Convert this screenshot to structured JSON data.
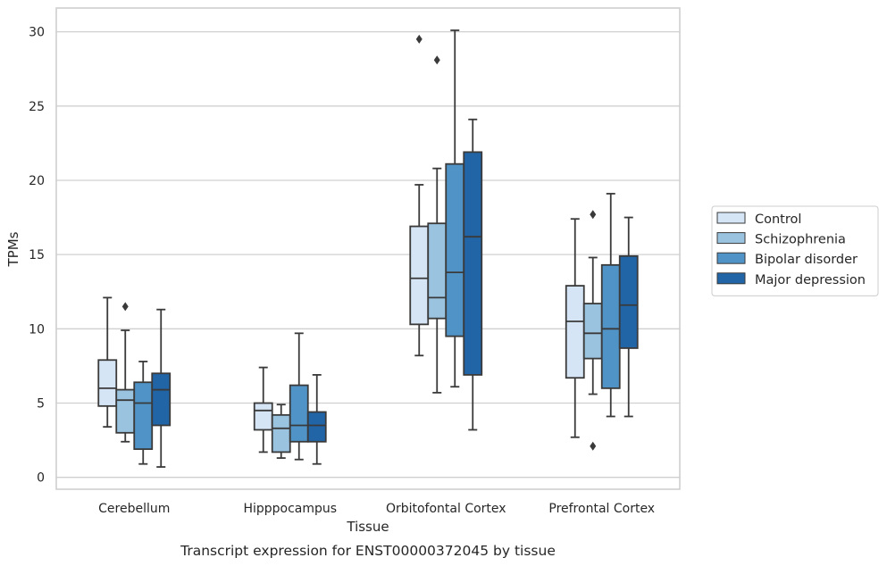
{
  "chart_data": {
    "type": "boxplot",
    "title": "",
    "caption": "Transcript expression for ENST00000372045 by tissue",
    "xlabel": "Tissue",
    "ylabel": "TPMs",
    "ylim": [
      -0.8,
      31.6
    ],
    "yticks": [
      "0",
      "5",
      "10",
      "15",
      "20",
      "25",
      "30"
    ],
    "grid": "horizontal",
    "legend_position": "right",
    "categories": [
      "Cerebellum",
      "Hipppocampus",
      "Orbitofontal Cortex",
      "Prefrontal Cortex"
    ],
    "series": [
      {
        "name": "Control",
        "color": "#d6e5f5",
        "boxes": [
          {
            "whislo": 3.4,
            "q1": 4.8,
            "med": 6.0,
            "q3": 7.9,
            "whishi": 12.1,
            "fliers": []
          },
          {
            "whislo": 1.7,
            "q1": 3.2,
            "med": 4.5,
            "q3": 5.0,
            "whishi": 7.4,
            "fliers": []
          },
          {
            "whislo": 8.2,
            "q1": 10.3,
            "med": 13.4,
            "q3": 16.9,
            "whishi": 19.7,
            "fliers": [
              29.5
            ]
          },
          {
            "whislo": 2.7,
            "q1": 6.7,
            "med": 10.5,
            "q3": 12.9,
            "whishi": 17.4,
            "fliers": []
          }
        ]
      },
      {
        "name": "Schizophrenia",
        "color": "#9ac3e0",
        "boxes": [
          {
            "whislo": 2.4,
            "q1": 3.0,
            "med": 5.2,
            "q3": 5.9,
            "whishi": 9.9,
            "fliers": [
              11.5
            ]
          },
          {
            "whislo": 1.3,
            "q1": 1.7,
            "med": 3.3,
            "q3": 4.2,
            "whishi": 4.9,
            "fliers": []
          },
          {
            "whislo": 5.7,
            "q1": 10.7,
            "med": 12.1,
            "q3": 17.1,
            "whishi": 20.8,
            "fliers": [
              28.1
            ]
          },
          {
            "whislo": 5.6,
            "q1": 8.0,
            "med": 9.7,
            "q3": 11.7,
            "whishi": 14.8,
            "fliers": [
              17.7,
              2.1
            ]
          }
        ]
      },
      {
        "name": "Bipolar disorder",
        "color": "#5093c6",
        "boxes": [
          {
            "whislo": 0.9,
            "q1": 1.9,
            "med": 5.0,
            "q3": 6.4,
            "whishi": 7.8,
            "fliers": []
          },
          {
            "whislo": 1.2,
            "q1": 2.4,
            "med": 3.5,
            "q3": 6.2,
            "whishi": 9.7,
            "fliers": []
          },
          {
            "whislo": 6.1,
            "q1": 9.5,
            "med": 13.8,
            "q3": 21.1,
            "whishi": 30.1,
            "fliers": []
          },
          {
            "whislo": 4.1,
            "q1": 6.0,
            "med": 10.0,
            "q3": 14.3,
            "whishi": 19.1,
            "fliers": []
          }
        ]
      },
      {
        "name": "Major depression",
        "color": "#2265a7",
        "boxes": [
          {
            "whislo": 0.7,
            "q1": 3.5,
            "med": 5.9,
            "q3": 7.0,
            "whishi": 11.3,
            "fliers": []
          },
          {
            "whislo": 0.9,
            "q1": 2.4,
            "med": 3.5,
            "q3": 4.4,
            "whishi": 6.9,
            "fliers": []
          },
          {
            "whislo": 3.2,
            "q1": 6.9,
            "med": 16.2,
            "q3": 21.9,
            "whishi": 24.1,
            "fliers": []
          },
          {
            "whislo": 4.1,
            "q1": 8.7,
            "med": 11.6,
            "q3": 14.9,
            "whishi": 17.5,
            "fliers": []
          }
        ]
      }
    ],
    "colors": {
      "line": "#3a3a3a",
      "grid": "#d0d0d0",
      "frame": "#cccccc"
    }
  }
}
